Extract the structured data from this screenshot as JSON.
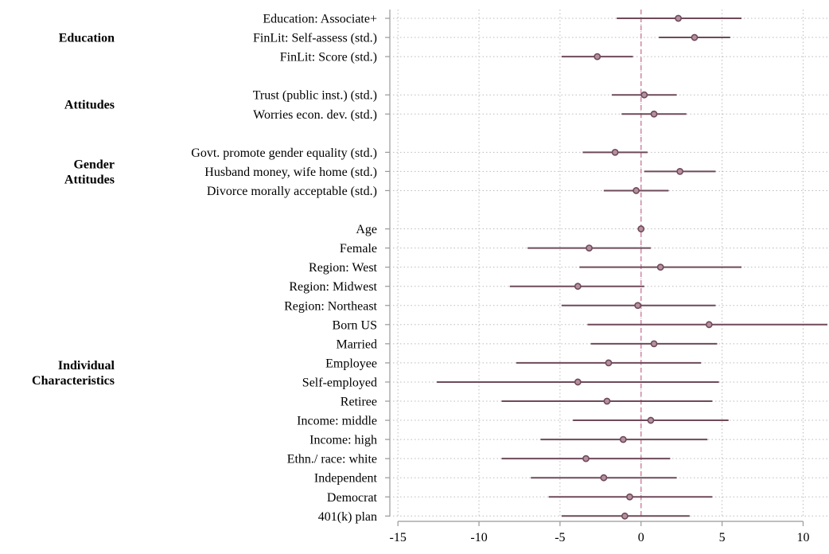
{
  "chart_data": {
    "type": "coefficient-plot",
    "title": "",
    "xlabel": "",
    "ylabel": "",
    "xlim": [
      -15.5,
      11.5
    ],
    "xticks": [
      -15,
      -10,
      -5,
      0,
      5,
      10
    ],
    "reference_line": 0,
    "grid": true,
    "colors": {
      "marker": "#6e4a5a",
      "ci_line": "#6e4a5a",
      "reference_line": "#d38aa7",
      "grid": "#bbbbbb",
      "axis": "#999999"
    },
    "groups": [
      {
        "label": [
          "Education"
        ],
        "items": [
          {
            "label": "Education: Associate+",
            "estimate": 2.3,
            "ci": [
              -1.5,
              6.2
            ]
          },
          {
            "label": "FinLit: Self-assess (std.)",
            "estimate": 3.3,
            "ci": [
              1.1,
              5.5
            ]
          },
          {
            "label": "FinLit: Score (std.)",
            "estimate": -2.7,
            "ci": [
              -4.9,
              -0.5
            ]
          }
        ]
      },
      {
        "label": [
          "Attitudes"
        ],
        "items": [
          {
            "label": "Trust (public inst.) (std.)",
            "estimate": 0.2,
            "ci": [
              -1.8,
              2.2
            ]
          },
          {
            "label": "Worries econ. dev. (std.)",
            "estimate": 0.8,
            "ci": [
              -1.2,
              2.8
            ]
          }
        ]
      },
      {
        "label": [
          "Gender",
          "Attitudes"
        ],
        "items": [
          {
            "label": "Govt. promote gender equality (std.)",
            "estimate": -1.6,
            "ci": [
              -3.6,
              0.4
            ]
          },
          {
            "label": "Husband money, wife home (std.)",
            "estimate": 2.4,
            "ci": [
              0.2,
              4.6
            ]
          },
          {
            "label": "Divorce morally acceptable (std.)",
            "estimate": -0.3,
            "ci": [
              -2.3,
              1.7
            ]
          }
        ]
      },
      {
        "label": [
          "Individual",
          "Characteristics"
        ],
        "items": [
          {
            "label": "Age",
            "estimate": 0.0,
            "ci": [
              -0.1,
              0.1
            ]
          },
          {
            "label": "Female",
            "estimate": -3.2,
            "ci": [
              -7.0,
              0.6
            ]
          },
          {
            "label": "Region: West",
            "estimate": 1.2,
            "ci": [
              -3.8,
              6.2
            ]
          },
          {
            "label": "Region: Midwest",
            "estimate": -3.9,
            "ci": [
              -8.1,
              0.2
            ]
          },
          {
            "label": "Region: Northeast",
            "estimate": -0.2,
            "ci": [
              -4.9,
              4.6
            ]
          },
          {
            "label": "Born US",
            "estimate": 4.2,
            "ci": [
              -3.3,
              11.8
            ]
          },
          {
            "label": "Married",
            "estimate": 0.8,
            "ci": [
              -3.1,
              4.7
            ]
          },
          {
            "label": "Employee",
            "estimate": -2.0,
            "ci": [
              -7.7,
              3.7
            ]
          },
          {
            "label": "Self-employed",
            "estimate": -3.9,
            "ci": [
              -12.6,
              4.8
            ]
          },
          {
            "label": "Retiree",
            "estimate": -2.1,
            "ci": [
              -8.6,
              4.4
            ]
          },
          {
            "label": "Income: middle",
            "estimate": 0.6,
            "ci": [
              -4.2,
              5.4
            ]
          },
          {
            "label": "Income: high",
            "estimate": -1.1,
            "ci": [
              -6.2,
              4.1
            ]
          },
          {
            "label": "Ethn./ race: white",
            "estimate": -3.4,
            "ci": [
              -8.6,
              1.8
            ]
          },
          {
            "label": "Independent",
            "estimate": -2.3,
            "ci": [
              -6.8,
              2.2
            ]
          },
          {
            "label": "Democrat",
            "estimate": -0.7,
            "ci": [
              -5.7,
              4.4
            ]
          },
          {
            "label": "401(k) plan",
            "estimate": -1.0,
            "ci": [
              -4.9,
              3.0
            ]
          }
        ]
      }
    ]
  }
}
